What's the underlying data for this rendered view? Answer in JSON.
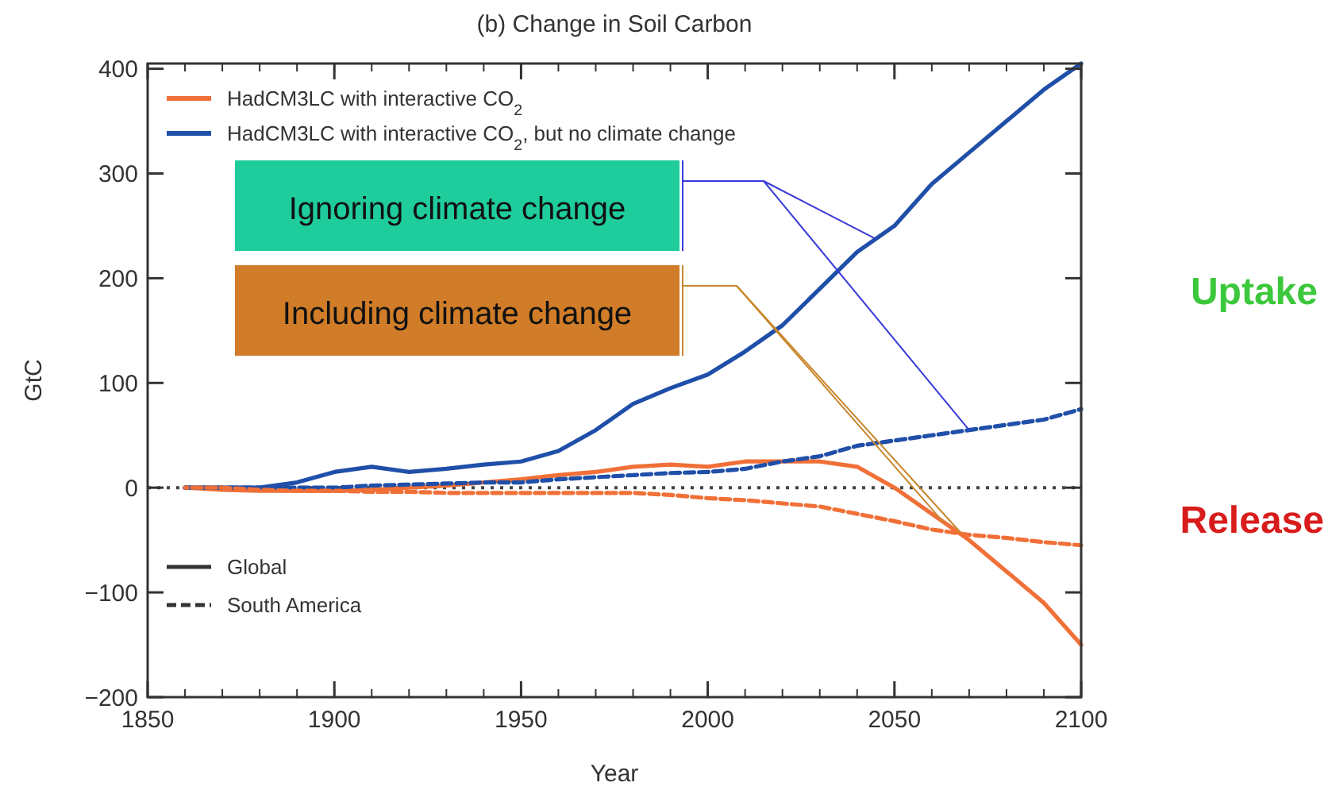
{
  "chart_data": {
    "type": "line",
    "title": "(b) Change in Soil Carbon",
    "xlabel": "Year",
    "ylabel": "GtC",
    "xlim": [
      1850,
      2100
    ],
    "xticks": [
      1850,
      1900,
      1950,
      2000,
      2050,
      2100
    ],
    "ylim": [
      -200,
      405
    ],
    "yticks": [
      -200,
      -100,
      0,
      100,
      200,
      300,
      400
    ],
    "x": [
      1860,
      1870,
      1880,
      1890,
      1900,
      1910,
      1920,
      1930,
      1940,
      1950,
      1960,
      1970,
      1980,
      1990,
      2000,
      2010,
      2020,
      2030,
      2040,
      2050,
      2060,
      2070,
      2080,
      2090,
      2100
    ],
    "series": [
      {
        "name": "HadCM3LC with interactive CO$_{2}$",
        "color": "#f07038",
        "line_style": "solid",
        "values": [
          0,
          -2,
          -3,
          -3,
          -3,
          -2,
          0,
          2,
          5,
          8,
          12,
          15,
          20,
          22,
          20,
          25,
          25,
          25,
          20,
          0,
          -25,
          -50,
          -80,
          -110,
          -150
        ]
      },
      {
        "name": "HadCM3LC with interactive CO$_{2}$, but no climate change",
        "color": "#1f4fa8",
        "line_style": "solid",
        "values": [
          0,
          0,
          0,
          5,
          15,
          20,
          15,
          18,
          22,
          25,
          35,
          55,
          80,
          95,
          108,
          130,
          155,
          190,
          225,
          250,
          290,
          320,
          350,
          380,
          405
        ]
      },
      {
        "color": "#1f4fa8",
        "line_style": "dashed",
        "values": [
          0,
          0,
          0,
          0,
          0,
          2,
          3,
          4,
          5,
          5,
          8,
          10,
          12,
          14,
          15,
          18,
          25,
          30,
          40,
          45,
          50,
          55,
          60,
          65,
          75
        ]
      },
      {
        "color": "#f07038",
        "line_style": "dashed",
        "values": [
          0,
          0,
          -2,
          -3,
          -3,
          -4,
          -4,
          -5,
          -5,
          -5,
          -5,
          -5,
          -5,
          -7,
          -10,
          -12,
          -15,
          -18,
          -25,
          -32,
          -40,
          -45,
          -48,
          -52,
          -55
        ]
      }
    ],
    "legend": "top left",
    "grid": false,
    "ref_lines": [
      {
        "axis": "y",
        "value": 0,
        "color": "#444444",
        "line_style": "dotted"
      }
    ],
    "annotations": [
      "Ignoring climate change",
      "Including climate change",
      "Uptake",
      "Release",
      "Global",
      "South America"
    ]
  }
}
